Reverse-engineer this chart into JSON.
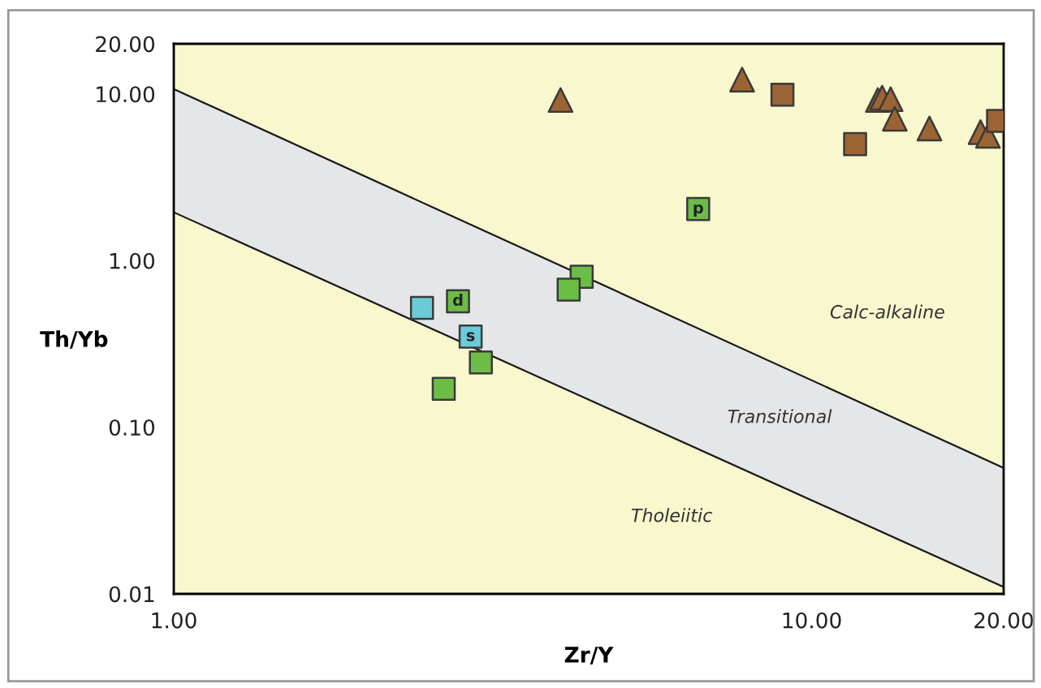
{
  "chart_data": {
    "type": "scatter",
    "xlabel": "Zr/Y",
    "ylabel": "Th/Yb",
    "log": "xy",
    "grid": false,
    "legend": false,
    "xlim": [
      1,
      20
    ],
    "ylim": [
      0.01,
      20
    ],
    "xticks": [
      {
        "value": 1,
        "label": "1.00"
      },
      {
        "value": 10,
        "label": "10.00"
      },
      {
        "value": 20,
        "label": "20.00"
      }
    ],
    "yticks": [
      {
        "value": 0.01,
        "label": "0.01"
      },
      {
        "value": 0.1,
        "label": "0.10"
      },
      {
        "value": 1,
        "label": "1.00"
      },
      {
        "value": 10,
        "label": "10.00"
      },
      {
        "value": 20,
        "label": "20.00"
      }
    ],
    "series": [
      {
        "type": "area",
        "color": "#e5e6e8",
        "x": [
          1,
          20
        ],
        "values": [
          10.7,
          0.057
        ]
      },
      {
        "type": "area",
        "color": "#f9f7cd",
        "x": [
          1,
          20
        ],
        "values": [
          1.95,
          0.011
        ]
      },
      {
        "marker": "triangle",
        "color": "#9c6434",
        "x": [
          4.04,
          7.78,
          12.7,
          12.9,
          13.3,
          13.5,
          15.3,
          18.4,
          18.9
        ],
        "values": [
          9.2,
          12.2,
          9.2,
          9.5,
          9.3,
          7.1,
          6.2,
          5.9,
          5.6
        ]
      },
      {
        "marker": "square",
        "color": "#9c6434",
        "x": [
          9.0,
          11.7,
          19.6
        ],
        "values": [
          9.9,
          5.0,
          6.9
        ]
      },
      {
        "marker": "square",
        "color": "#6cbd45",
        "x": [
          6.64,
          4.36,
          4.16,
          2.79,
          3.03,
          2.65
        ],
        "values": [
          2.04,
          0.8,
          0.67,
          0.57,
          0.245,
          0.17
        ],
        "value_labels": [
          "p",
          null,
          null,
          "d",
          null,
          null
        ]
      },
      {
        "marker": "square",
        "color": "#6ccbd8",
        "x": [
          2.45,
          2.92
        ],
        "values": [
          0.52,
          0.35
        ],
        "value_labels": [
          null,
          "s"
        ]
      }
    ],
    "annotations": [
      "Calc-alkaline",
      "Transitional",
      "Tholeiitic"
    ]
  }
}
